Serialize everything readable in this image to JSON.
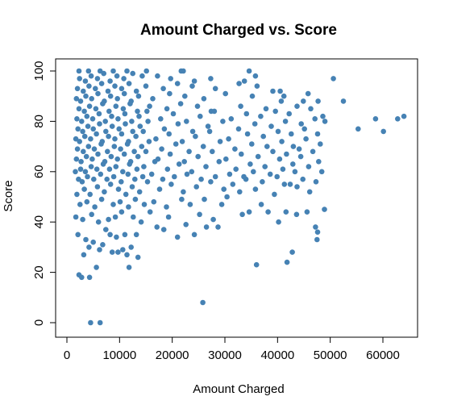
{
  "chart_data": {
    "type": "scatter",
    "title": "Amount Charged vs. Score",
    "xlabel": "Amount Charged",
    "ylabel": "Score",
    "xlim": [
      0,
      65000
    ],
    "ylim": [
      0,
      100
    ],
    "xticks": [
      0,
      10000,
      20000,
      30000,
      40000,
      50000,
      60000
    ],
    "xtick_labels": [
      "0",
      "10000",
      "20000",
      "30000",
      "40000",
      "50000",
      "60000"
    ],
    "yticks": [
      0,
      20,
      40,
      60,
      80,
      100
    ],
    "ytick_labels": [
      "0",
      "20",
      "40",
      "60",
      "80",
      "100"
    ],
    "grid": false,
    "legend": "none",
    "point_color": "#4682B4",
    "points": [
      [
        4500,
        0
      ],
      [
        6300,
        0
      ],
      [
        25800,
        8
      ],
      [
        2300,
        19
      ],
      [
        2800,
        18
      ],
      [
        4300,
        18
      ],
      [
        5600,
        22
      ],
      [
        11800,
        22
      ],
      [
        36000,
        23
      ],
      [
        41800,
        24
      ],
      [
        42800,
        28
      ],
      [
        3200,
        27
      ],
      [
        6200,
        29
      ],
      [
        8600,
        28
      ],
      [
        9700,
        28
      ],
      [
        10600,
        29
      ],
      [
        11400,
        27
      ],
      [
        13500,
        26
      ],
      [
        12200,
        30
      ],
      [
        3600,
        33
      ],
      [
        4200,
        30
      ],
      [
        5000,
        32
      ],
      [
        6800,
        31
      ],
      [
        8200,
        35
      ],
      [
        9400,
        34
      ],
      [
        47500,
        33
      ],
      [
        47600,
        36
      ],
      [
        47200,
        38
      ],
      [
        2100,
        35
      ],
      [
        7400,
        37
      ],
      [
        11000,
        35
      ],
      [
        13200,
        35
      ],
      [
        18400,
        37
      ],
      [
        21000,
        34
      ],
      [
        24200,
        35
      ],
      [
        26500,
        38
      ],
      [
        28700,
        38
      ],
      [
        22600,
        39
      ],
      [
        17100,
        38
      ],
      [
        40200,
        40
      ],
      [
        41600,
        44
      ],
      [
        43600,
        43
      ],
      [
        45600,
        44
      ],
      [
        48900,
        45
      ],
      [
        1700,
        42
      ],
      [
        3000,
        41
      ],
      [
        4700,
        43
      ],
      [
        6000,
        40
      ],
      [
        7900,
        41
      ],
      [
        9200,
        42
      ],
      [
        10400,
        44
      ],
      [
        12600,
        42
      ],
      [
        14100,
        40
      ],
      [
        15800,
        44
      ],
      [
        19300,
        42
      ],
      [
        25200,
        43
      ],
      [
        27800,
        41
      ],
      [
        29400,
        47
      ],
      [
        33300,
        43
      ],
      [
        34600,
        44
      ],
      [
        38200,
        44
      ],
      [
        36900,
        47
      ],
      [
        2500,
        47
      ],
      [
        3800,
        48
      ],
      [
        5300,
        46
      ],
      [
        6600,
        49
      ],
      [
        8800,
        47
      ],
      [
        10100,
        48
      ],
      [
        11700,
        46
      ],
      [
        13000,
        49
      ],
      [
        14700,
        47
      ],
      [
        16500,
        48
      ],
      [
        18900,
        46
      ],
      [
        21800,
        49
      ],
      [
        23400,
        47
      ],
      [
        26100,
        49
      ],
      [
        30400,
        50
      ],
      [
        32800,
        52
      ],
      [
        35800,
        53
      ],
      [
        39400,
        51
      ],
      [
        41300,
        55
      ],
      [
        43700,
        54
      ],
      [
        46100,
        52
      ],
      [
        1900,
        51
      ],
      [
        3300,
        53
      ],
      [
        4400,
        51
      ],
      [
        5800,
        54
      ],
      [
        7100,
        52
      ],
      [
        8300,
        55
      ],
      [
        9800,
        53
      ],
      [
        11200,
        51
      ],
      [
        12400,
        54
      ],
      [
        13800,
        52
      ],
      [
        15300,
        56
      ],
      [
        17600,
        53
      ],
      [
        19800,
        55
      ],
      [
        22100,
        52
      ],
      [
        24600,
        54
      ],
      [
        27300,
        56
      ],
      [
        29800,
        53
      ],
      [
        31500,
        55
      ],
      [
        34000,
        57
      ],
      [
        37100,
        56
      ],
      [
        39900,
        58
      ],
      [
        42400,
        55
      ],
      [
        44800,
        57
      ],
      [
        47300,
        56
      ],
      [
        2200,
        57
      ],
      [
        2900,
        56
      ],
      [
        3900,
        58
      ],
      [
        5100,
        57
      ],
      [
        6400,
        59
      ],
      [
        7600,
        57
      ],
      [
        8900,
        58
      ],
      [
        10300,
        56
      ],
      [
        11600,
        59
      ],
      [
        12900,
        57
      ],
      [
        14400,
        58
      ],
      [
        16100,
        59
      ],
      [
        18200,
        57
      ],
      [
        20400,
        58
      ],
      [
        22800,
        59
      ],
      [
        25500,
        57
      ],
      [
        28200,
        58
      ],
      [
        30900,
        59
      ],
      [
        33600,
        58
      ],
      [
        35400,
        60
      ],
      [
        38600,
        59
      ],
      [
        41000,
        61
      ],
      [
        43300,
        60
      ],
      [
        45900,
        62
      ],
      [
        48400,
        60
      ],
      [
        1600,
        60
      ],
      [
        2600,
        61
      ],
      [
        3500,
        60
      ],
      [
        4600,
        62
      ],
      [
        5700,
        61
      ],
      [
        6900,
        63
      ],
      [
        8100,
        61
      ],
      [
        9300,
        62
      ],
      [
        10600,
        60
      ],
      [
        11900,
        63
      ],
      [
        13300,
        61
      ],
      [
        14600,
        62
      ],
      [
        16700,
        64
      ],
      [
        19100,
        61
      ],
      [
        21300,
        63
      ],
      [
        23700,
        60
      ],
      [
        26400,
        62
      ],
      [
        28900,
        64
      ],
      [
        32100,
        61
      ],
      [
        34800,
        63
      ],
      [
        37600,
        62
      ],
      [
        40400,
        65
      ],
      [
        42900,
        63
      ],
      [
        44400,
        66
      ],
      [
        47800,
        64
      ],
      [
        1800,
        65
      ],
      [
        2700,
        64
      ],
      [
        3700,
        66
      ],
      [
        4800,
        65
      ],
      [
        5900,
        67
      ],
      [
        7200,
        64
      ],
      [
        8400,
        66
      ],
      [
        9600,
        65
      ],
      [
        10900,
        67
      ],
      [
        12100,
        64
      ],
      [
        13500,
        66
      ],
      [
        15000,
        68
      ],
      [
        17300,
        65
      ],
      [
        19600,
        67
      ],
      [
        22300,
        64
      ],
      [
        24900,
        66
      ],
      [
        27600,
        68
      ],
      [
        30200,
        65
      ],
      [
        33100,
        67
      ],
      [
        36300,
        66
      ],
      [
        39100,
        68
      ],
      [
        41700,
        67
      ],
      [
        44100,
        69
      ],
      [
        46700,
        68
      ],
      [
        2000,
        69
      ],
      [
        3100,
        68
      ],
      [
        4100,
        70
      ],
      [
        5200,
        69
      ],
      [
        6500,
        71
      ],
      [
        7700,
        68
      ],
      [
        9000,
        70
      ],
      [
        10200,
        69
      ],
      [
        11500,
        71
      ],
      [
        12800,
        68
      ],
      [
        14200,
        70
      ],
      [
        15600,
        72
      ],
      [
        18000,
        69
      ],
      [
        20700,
        71
      ],
      [
        23200,
        68
      ],
      [
        25900,
        70
      ],
      [
        29100,
        72
      ],
      [
        31900,
        69
      ],
      [
        35100,
        71
      ],
      [
        38000,
        70
      ],
      [
        40800,
        72
      ],
      [
        43000,
        70
      ],
      [
        45400,
        73
      ],
      [
        48100,
        71
      ],
      [
        1700,
        73
      ],
      [
        2400,
        72
      ],
      [
        3400,
        74
      ],
      [
        4500,
        73
      ],
      [
        5600,
        75
      ],
      [
        6700,
        72
      ],
      [
        7900,
        74
      ],
      [
        9100,
        73
      ],
      [
        10400,
        75
      ],
      [
        11700,
        72
      ],
      [
        13100,
        74
      ],
      [
        14500,
        76
      ],
      [
        16900,
        73
      ],
      [
        19400,
        75
      ],
      [
        21900,
        72
      ],
      [
        24400,
        74
      ],
      [
        27100,
        76
      ],
      [
        30700,
        73
      ],
      [
        34300,
        75
      ],
      [
        37300,
        74
      ],
      [
        40100,
        76
      ],
      [
        42600,
        75
      ],
      [
        45100,
        77
      ],
      [
        47600,
        75
      ],
      [
        2100,
        77
      ],
      [
        3000,
        76
      ],
      [
        4000,
        78
      ],
      [
        5000,
        77
      ],
      [
        6200,
        79
      ],
      [
        7400,
        76
      ],
      [
        8600,
        78
      ],
      [
        9900,
        77
      ],
      [
        11100,
        79
      ],
      [
        12500,
        76
      ],
      [
        13900,
        78
      ],
      [
        15400,
        80
      ],
      [
        18500,
        77
      ],
      [
        21100,
        79
      ],
      [
        23900,
        76
      ],
      [
        26800,
        78
      ],
      [
        29600,
        80
      ],
      [
        32600,
        77
      ],
      [
        35700,
        79
      ],
      [
        38800,
        78
      ],
      [
        41500,
        80
      ],
      [
        44500,
        79
      ],
      [
        47100,
        81
      ],
      [
        49000,
        80
      ],
      [
        55300,
        77
      ],
      [
        60100,
        76
      ],
      [
        1900,
        81
      ],
      [
        2800,
        80
      ],
      [
        3800,
        82
      ],
      [
        4900,
        81
      ],
      [
        6100,
        83
      ],
      [
        7300,
        80
      ],
      [
        8500,
        82
      ],
      [
        9700,
        81
      ],
      [
        11000,
        83
      ],
      [
        12300,
        80
      ],
      [
        13700,
        82
      ],
      [
        15200,
        84
      ],
      [
        17800,
        81
      ],
      [
        20200,
        83
      ],
      [
        22700,
        80
      ],
      [
        25300,
        82
      ],
      [
        28000,
        84
      ],
      [
        31200,
        81
      ],
      [
        34100,
        83
      ],
      [
        36800,
        82
      ],
      [
        39600,
        84
      ],
      [
        42200,
        83
      ],
      [
        46300,
        85
      ],
      [
        48600,
        82
      ],
      [
        58600,
        81
      ],
      [
        62800,
        81
      ],
      [
        64000,
        82
      ],
      [
        2300,
        85
      ],
      [
        3300,
        84
      ],
      [
        4300,
        86
      ],
      [
        5500,
        85
      ],
      [
        6800,
        87
      ],
      [
        8000,
        84
      ],
      [
        9300,
        86
      ],
      [
        10700,
        85
      ],
      [
        12000,
        87
      ],
      [
        13400,
        84
      ],
      [
        15700,
        86
      ],
      [
        19000,
        85
      ],
      [
        21600,
        87
      ],
      [
        24800,
        86
      ],
      [
        27400,
        84
      ],
      [
        33000,
        86
      ],
      [
        37800,
        85
      ],
      [
        40700,
        88
      ],
      [
        43700,
        86
      ],
      [
        44900,
        88
      ],
      [
        47700,
        88
      ],
      [
        52500,
        88
      ],
      [
        1800,
        89
      ],
      [
        2600,
        88
      ],
      [
        3600,
        90
      ],
      [
        4700,
        89
      ],
      [
        5900,
        91
      ],
      [
        7100,
        88
      ],
      [
        8300,
        90
      ],
      [
        9600,
        89
      ],
      [
        10900,
        91
      ],
      [
        12200,
        88
      ],
      [
        13600,
        90
      ],
      [
        16300,
        89
      ],
      [
        19500,
        91
      ],
      [
        22400,
        90
      ],
      [
        26000,
        89
      ],
      [
        30100,
        91
      ],
      [
        35200,
        90
      ],
      [
        39100,
        92
      ],
      [
        41200,
        90
      ],
      [
        45800,
        91
      ],
      [
        2000,
        93
      ],
      [
        3100,
        92
      ],
      [
        4200,
        94
      ],
      [
        5400,
        93
      ],
      [
        6600,
        95
      ],
      [
        7800,
        92
      ],
      [
        9100,
        94
      ],
      [
        10400,
        93
      ],
      [
        11800,
        95
      ],
      [
        13200,
        92
      ],
      [
        15000,
        94
      ],
      [
        18300,
        93
      ],
      [
        21000,
        95
      ],
      [
        23800,
        94
      ],
      [
        28200,
        93
      ],
      [
        32700,
        95
      ],
      [
        36100,
        94
      ],
      [
        40500,
        92
      ],
      [
        2400,
        97
      ],
      [
        3500,
        96
      ],
      [
        4600,
        98
      ],
      [
        5800,
        97
      ],
      [
        7000,
        99
      ],
      [
        8200,
        96
      ],
      [
        9500,
        98
      ],
      [
        10800,
        97
      ],
      [
        12500,
        99
      ],
      [
        14300,
        98
      ],
      [
        17200,
        98
      ],
      [
        19700,
        97
      ],
      [
        21700,
        100
      ],
      [
        24200,
        96
      ],
      [
        27300,
        97
      ],
      [
        33700,
        96
      ],
      [
        35800,
        98
      ],
      [
        50600,
        97
      ],
      [
        2300,
        100
      ],
      [
        4100,
        100
      ],
      [
        6300,
        100
      ],
      [
        8800,
        100
      ],
      [
        11400,
        100
      ],
      [
        15100,
        100
      ],
      [
        22100,
        100
      ],
      [
        34600,
        100
      ]
    ]
  }
}
